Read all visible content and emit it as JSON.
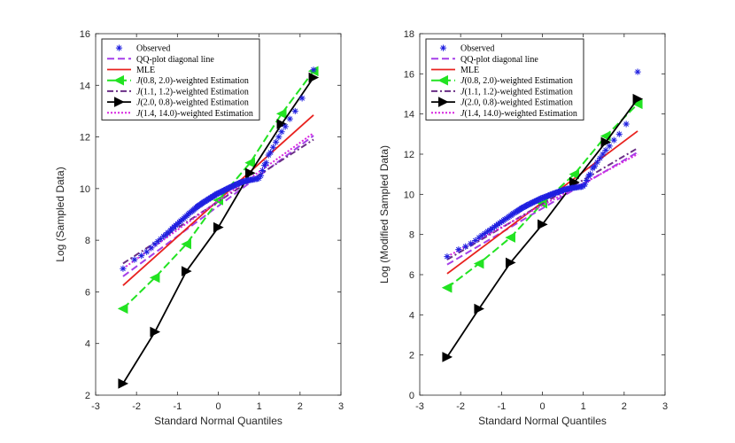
{
  "chart_data": [
    {
      "type": "line",
      "xlabel": "Standard Normal Quantiles",
      "ylabel": "Log (Sampled Data)",
      "xlim": [
        -3,
        3
      ],
      "ylim": [
        2,
        16
      ],
      "xticks": [
        -3,
        -2,
        -1,
        0,
        1,
        2,
        3
      ],
      "yticks": [
        2,
        4,
        6,
        8,
        10,
        12,
        14,
        16
      ],
      "legend_position": "top-left",
      "legend": [
        "Observed",
        "QQ-plot diagonal line",
        "MLE",
        "J(0.8, 2.0)-weighted Estimation",
        "J(1.1, 1.2)-weighted Estimation",
        "J(2.0, 0.8)-weighted Estimation",
        "J(1.4, 14.0)-weighted Estimation"
      ],
      "observed": {
        "x": [
          -2.33,
          -2.05,
          -1.88,
          -1.75,
          -1.64,
          -1.55,
          -1.48,
          -1.41,
          -1.34,
          -1.28,
          -1.23,
          -1.17,
          -1.13,
          -1.08,
          -1.04,
          -0.99,
          -0.95,
          -0.92,
          -0.88,
          -0.84,
          -0.81,
          -0.77,
          -0.74,
          -0.71,
          -0.67,
          -0.64,
          -0.61,
          -0.58,
          -0.55,
          -0.52,
          -0.5,
          -0.47,
          -0.44,
          -0.41,
          -0.39,
          -0.36,
          -0.33,
          -0.31,
          -0.28,
          -0.25,
          -0.23,
          -0.2,
          -0.18,
          -0.15,
          -0.13,
          -0.1,
          -0.08,
          -0.05,
          -0.03,
          0.0,
          0.03,
          0.05,
          0.08,
          0.1,
          0.13,
          0.15,
          0.18,
          0.2,
          0.23,
          0.25,
          0.28,
          0.31,
          0.33,
          0.36,
          0.39,
          0.41,
          0.44,
          0.47,
          0.5,
          0.52,
          0.55,
          0.58,
          0.61,
          0.64,
          0.67,
          0.71,
          0.74,
          0.77,
          0.81,
          0.84,
          0.88,
          0.92,
          0.95,
          0.99,
          1.04,
          1.08,
          1.13,
          1.17,
          1.23,
          1.28,
          1.34,
          1.41,
          1.48,
          1.55,
          1.64,
          1.75,
          1.88,
          2.05,
          2.33
        ],
        "y": [
          6.9,
          7.25,
          7.4,
          7.55,
          7.7,
          7.85,
          7.95,
          8.05,
          8.15,
          8.22,
          8.3,
          8.38,
          8.45,
          8.52,
          8.58,
          8.64,
          8.7,
          8.75,
          8.8,
          8.85,
          8.9,
          8.95,
          9.0,
          9.05,
          9.09,
          9.13,
          9.17,
          9.21,
          9.25,
          9.29,
          9.32,
          9.35,
          9.38,
          9.41,
          9.44,
          9.47,
          9.5,
          9.52,
          9.55,
          9.58,
          9.6,
          9.63,
          9.65,
          9.68,
          9.7,
          9.72,
          9.75,
          9.78,
          9.8,
          9.82,
          9.84,
          9.86,
          9.88,
          9.9,
          9.92,
          9.94,
          9.96,
          9.98,
          10.0,
          10.02,
          10.04,
          10.06,
          10.08,
          10.1,
          10.12,
          10.14,
          10.16,
          10.18,
          10.2,
          10.22,
          10.24,
          10.25,
          10.27,
          10.28,
          10.3,
          10.31,
          10.32,
          10.33,
          10.34,
          10.35,
          10.36,
          10.37,
          10.38,
          10.4,
          10.5,
          10.7,
          10.9,
          11.0,
          11.3,
          11.4,
          11.6,
          11.8,
          12.0,
          12.2,
          12.4,
          12.7,
          13.0,
          13.5,
          14.6
        ]
      },
      "series": [
        {
          "name": "QQ-plot diagonal line",
          "x": [
            -2.33,
            2.33
          ],
          "y": [
            6.6,
            12.05
          ]
        },
        {
          "name": "MLE",
          "x": [
            -2.33,
            2.33
          ],
          "y": [
            6.25,
            12.85
          ]
        },
        {
          "name": "J(0.8, 2.0)-weighted Estimation",
          "x": [
            -2.33,
            -1.55,
            -0.78,
            0.0,
            0.78,
            1.55,
            2.33
          ],
          "y": [
            5.35,
            6.55,
            7.85,
            9.55,
            11.0,
            12.9,
            14.55
          ]
        },
        {
          "name": "J(1.1, 1.2)-weighted Estimation",
          "x": [
            -2.33,
            2.33
          ],
          "y": [
            7.1,
            11.9
          ]
        },
        {
          "name": "J(2.0, 0.8)-weighted Estimation",
          "x": [
            -2.33,
            -1.55,
            -0.78,
            0.0,
            0.78,
            1.55,
            2.33
          ],
          "y": [
            2.45,
            4.45,
            6.8,
            8.5,
            10.6,
            12.5,
            14.3
          ]
        },
        {
          "name": "J(1.4, 14.0)-weighted Estimation",
          "x": [
            -2.33,
            2.33
          ],
          "y": [
            6.9,
            12.15
          ]
        }
      ]
    },
    {
      "type": "line",
      "xlabel": "Standard Normal Quantiles",
      "ylabel": "Log (Modified Sampled Data)",
      "xlim": [
        -3,
        3
      ],
      "ylim": [
        0,
        18
      ],
      "xticks": [
        -3,
        -2,
        -1,
        0,
        1,
        2,
        3
      ],
      "yticks": [
        0,
        2,
        4,
        6,
        8,
        10,
        12,
        14,
        16,
        18
      ],
      "legend_position": "top-left",
      "legend": [
        "Observed",
        "QQ-plot diagonal line",
        "MLE",
        "J(0.8, 2.0)-weighted Estimation",
        "J(1.1, 1.2)-weighted Estimation",
        "J(2.0, 0.8)-weighted Estimation",
        "J(1.4, 14.0)-weighted Estimation"
      ],
      "observed": {
        "x": [
          -2.33,
          -2.05,
          -1.88,
          -1.75,
          -1.64,
          -1.55,
          -1.48,
          -1.41,
          -1.34,
          -1.28,
          -1.23,
          -1.17,
          -1.13,
          -1.08,
          -1.04,
          -0.99,
          -0.95,
          -0.92,
          -0.88,
          -0.84,
          -0.81,
          -0.77,
          -0.74,
          -0.71,
          -0.67,
          -0.64,
          -0.61,
          -0.58,
          -0.55,
          -0.52,
          -0.5,
          -0.47,
          -0.44,
          -0.41,
          -0.39,
          -0.36,
          -0.33,
          -0.31,
          -0.28,
          -0.25,
          -0.23,
          -0.2,
          -0.18,
          -0.15,
          -0.13,
          -0.1,
          -0.08,
          -0.05,
          -0.03,
          0.0,
          0.03,
          0.05,
          0.08,
          0.1,
          0.13,
          0.15,
          0.18,
          0.2,
          0.23,
          0.25,
          0.28,
          0.31,
          0.33,
          0.36,
          0.39,
          0.41,
          0.44,
          0.47,
          0.5,
          0.52,
          0.55,
          0.58,
          0.61,
          0.64,
          0.67,
          0.71,
          0.74,
          0.77,
          0.81,
          0.84,
          0.88,
          0.92,
          0.95,
          0.99,
          1.04,
          1.08,
          1.13,
          1.17,
          1.23,
          1.28,
          1.34,
          1.41,
          1.48,
          1.55,
          1.64,
          1.75,
          1.88,
          2.05,
          2.33
        ],
        "y": [
          6.9,
          7.25,
          7.4,
          7.55,
          7.7,
          7.85,
          7.95,
          8.05,
          8.15,
          8.22,
          8.3,
          8.38,
          8.45,
          8.52,
          8.58,
          8.64,
          8.7,
          8.75,
          8.8,
          8.85,
          8.9,
          8.95,
          9.0,
          9.05,
          9.09,
          9.13,
          9.17,
          9.21,
          9.25,
          9.29,
          9.32,
          9.35,
          9.38,
          9.41,
          9.44,
          9.47,
          9.5,
          9.52,
          9.55,
          9.58,
          9.6,
          9.63,
          9.65,
          9.68,
          9.7,
          9.72,
          9.75,
          9.78,
          9.8,
          9.82,
          9.84,
          9.86,
          9.88,
          9.9,
          9.92,
          9.94,
          9.96,
          9.98,
          10.0,
          10.02,
          10.04,
          10.06,
          10.08,
          10.1,
          10.12,
          10.14,
          10.16,
          10.18,
          10.2,
          10.22,
          10.24,
          10.25,
          10.27,
          10.28,
          10.3,
          10.31,
          10.32,
          10.33,
          10.34,
          10.35,
          10.36,
          10.37,
          10.38,
          10.4,
          10.5,
          10.7,
          10.9,
          11.0,
          11.3,
          11.4,
          11.6,
          11.8,
          12.0,
          12.2,
          12.4,
          12.7,
          13.0,
          13.5,
          16.1
        ]
      },
      "series": [
        {
          "name": "QQ-plot diagonal line",
          "x": [
            -2.33,
            2.33
          ],
          "y": [
            6.5,
            12.1
          ]
        },
        {
          "name": "MLE",
          "x": [
            -2.33,
            2.33
          ],
          "y": [
            6.05,
            13.15
          ]
        },
        {
          "name": "J(0.8, 2.0)-weighted Estimation",
          "x": [
            -2.33,
            -1.55,
            -0.78,
            0.0,
            0.78,
            1.55,
            2.33
          ],
          "y": [
            5.35,
            6.55,
            7.85,
            9.55,
            11.0,
            12.9,
            14.5
          ]
        },
        {
          "name": "J(1.1, 1.2)-weighted Estimation",
          "x": [
            -2.33,
            2.33
          ],
          "y": [
            6.75,
            12.3
          ]
        },
        {
          "name": "J(2.0, 0.8)-weighted Estimation",
          "x": [
            -2.33,
            -1.55,
            -0.78,
            0.0,
            0.78,
            1.55,
            2.33
          ],
          "y": [
            1.9,
            4.3,
            6.6,
            8.5,
            10.6,
            12.6,
            14.75
          ]
        },
        {
          "name": "J(1.4, 14.0)-weighted Estimation",
          "x": [
            -2.33,
            2.33
          ],
          "y": [
            6.9,
            12.0
          ]
        }
      ]
    }
  ]
}
